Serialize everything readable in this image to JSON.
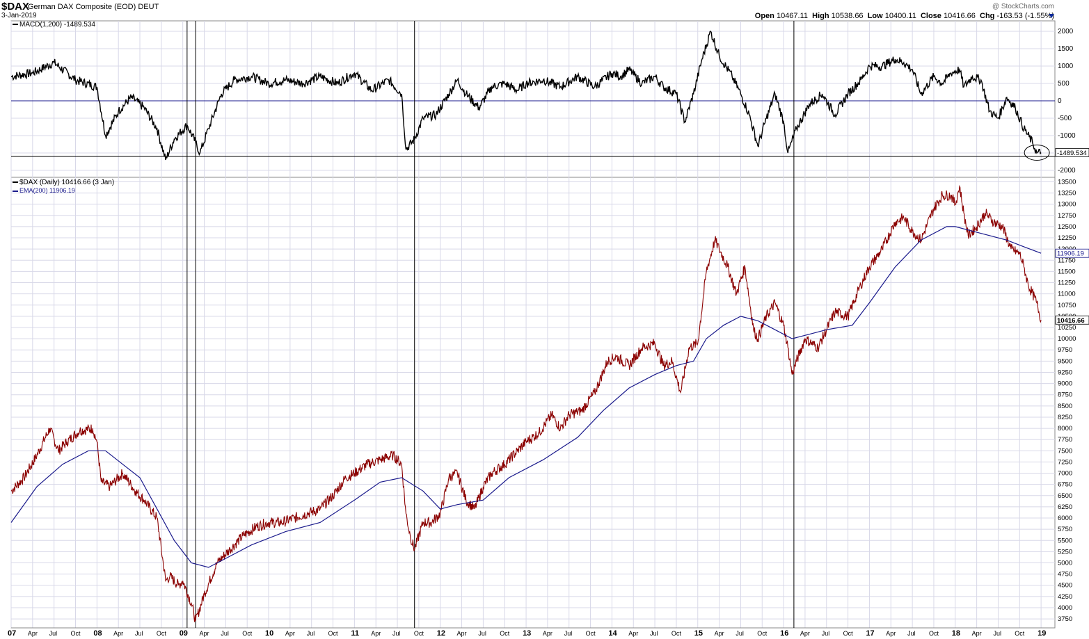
{
  "header": {
    "symbol": "$DAX",
    "name": "German DAX Composite (EOD)",
    "exchange": "DEUT",
    "date": "3-Jan-2019",
    "brand": "@ StockCharts.com",
    "open_label": "Open",
    "open": "10467.11",
    "high_label": "High",
    "high": "10538.66",
    "low_label": "Low",
    "low": "10400.11",
    "close_label": "Close",
    "close": "10416.66",
    "chg_label": "Chg",
    "chg": "-163.53 (-1.55%)"
  },
  "legend": {
    "macd": "MACD(1,200) -1489.534",
    "price": "$DAX (Daily) 10416.66 (3 Jan)",
    "ema": "EMA(200) 11906.19"
  },
  "colors": {
    "price": "#8b0000",
    "ema": "#1a1a8c",
    "macd": "#000000",
    "grid": "#d8d8e8"
  },
  "chart_data": [
    {
      "type": "line",
      "title": "MACD(1,200) -1489.534",
      "ylim": [
        -2200,
        2300
      ],
      "yticks": [
        2000,
        1500,
        1000,
        500,
        0,
        -500,
        -1000,
        -1500,
        -2000
      ],
      "yticklabels": [
        "2000",
        "1500",
        "1000",
        "500",
        "0",
        "-500",
        "-1000",
        "-1500",
        "-2000"
      ],
      "reference_lines": [
        0,
        -1600
      ],
      "last_value_label": "-1489.534",
      "series": [
        {
          "name": "MACD(1,200)",
          "x": [
            2007.0,
            2007.25,
            2007.5,
            2007.75,
            2008.0,
            2008.1,
            2008.25,
            2008.4,
            2008.55,
            2008.7,
            2008.8,
            2008.9,
            2009.05,
            2009.15,
            2009.2,
            2009.3,
            2009.45,
            2009.6,
            2009.8,
            2010.0,
            2010.2,
            2010.4,
            2010.6,
            2010.8,
            2011.0,
            2011.2,
            2011.4,
            2011.55,
            2011.6,
            2011.7,
            2011.8,
            2011.95,
            2012.1,
            2012.2,
            2012.3,
            2012.45,
            2012.6,
            2012.75,
            2012.9,
            2013.0,
            2013.2,
            2013.4,
            2013.6,
            2013.8,
            2014.0,
            2014.1,
            2014.2,
            2014.35,
            2014.5,
            2014.6,
            2014.75,
            2014.85,
            2014.95,
            2015.05,
            2015.15,
            2015.25,
            2015.4,
            2015.5,
            2015.6,
            2015.7,
            2015.8,
            2015.9,
            2016.0,
            2016.05,
            2016.15,
            2016.3,
            2016.45,
            2016.6,
            2016.75,
            2016.9,
            2017.0,
            2017.15,
            2017.3,
            2017.4,
            2017.5,
            2017.6,
            2017.75,
            2017.85,
            2017.95,
            2018.05,
            2018.1,
            2018.2,
            2018.3,
            2018.4,
            2018.5,
            2018.6,
            2018.7,
            2018.8,
            2018.9,
            2018.95,
            2019.0
          ],
          "y": [
            700,
            800,
            1100,
            600,
            400,
            -1000,
            -300,
            100,
            -200,
            -800,
            -1700,
            -1100,
            -700,
            -1200,
            -1500,
            -800,
            200,
            600,
            700,
            500,
            600,
            500,
            700,
            500,
            800,
            300,
            600,
            200,
            -1400,
            -1100,
            -500,
            -400,
            200,
            600,
            200,
            -200,
            400,
            500,
            300,
            500,
            600,
            400,
            700,
            400,
            800,
            700,
            900,
            500,
            700,
            400,
            200,
            -600,
            200,
            1200,
            2000,
            1300,
            700,
            200,
            -400,
            -1300,
            -500,
            200,
            -600,
            -1500,
            -800,
            -100,
            200,
            -400,
            200,
            600,
            1000,
            1000,
            1200,
            1100,
            900,
            200,
            700,
            500,
            800,
            900,
            400,
            700,
            600,
            -300,
            -500,
            100,
            -200,
            -800,
            -1200,
            -1500,
            -1489.534
          ]
        }
      ]
    },
    {
      "type": "line",
      "title": "$DAX (Daily) 10416.66 (3 Jan)",
      "ylim": [
        3550,
        13600
      ],
      "yticks": [
        13500,
        13250,
        13000,
        12750,
        12500,
        12250,
        12000,
        11750,
        11500,
        11250,
        11000,
        10750,
        10500,
        10250,
        10000,
        9750,
        9500,
        9250,
        9000,
        8750,
        8500,
        8250,
        8000,
        7750,
        7500,
        7250,
        7000,
        6750,
        6500,
        6250,
        6000,
        5750,
        5500,
        5250,
        5000,
        4750,
        4500,
        4250,
        4000,
        3750
      ],
      "yticklabels": [
        "13500",
        "13250",
        "13000",
        "12750",
        "12500",
        "12250",
        "12000",
        "11750",
        "11500",
        "11250",
        "11000",
        "10750",
        "10500",
        "10250",
        "10000",
        "9750",
        "9500",
        "9250",
        "9000",
        "8750",
        "8500",
        "8250",
        "8000",
        "7750",
        "7500",
        "7250",
        "7000",
        "6750",
        "6500",
        "6250",
        "6000",
        "5750",
        "5500",
        "5250",
        "5000",
        "4750",
        "4500",
        "4250",
        "4000",
        "3750"
      ],
      "last_value_labels": [
        "11906.19",
        "10416.66"
      ],
      "xticklabels": [
        "07",
        "Apr",
        "Jul",
        "Oct",
        "08",
        "Apr",
        "Jul",
        "Oct",
        "09",
        "Apr",
        "Jul",
        "Oct",
        "10",
        "Apr",
        "Jul",
        "Oct",
        "11",
        "Apr",
        "Jul",
        "Oct",
        "12",
        "Apr",
        "Jul",
        "Oct",
        "13",
        "Apr",
        "Jul",
        "Oct",
        "14",
        "Apr",
        "Jul",
        "Oct",
        "15",
        "Apr",
        "Jul",
        "Oct",
        "16",
        "Apr",
        "Jul",
        "Oct",
        "17",
        "Apr",
        "Jul",
        "Oct",
        "18",
        "Apr",
        "Jul",
        "Oct",
        "19"
      ],
      "series": [
        {
          "name": "$DAX (Daily)",
          "x": [
            2007.0,
            2007.15,
            2007.3,
            2007.45,
            2007.55,
            2007.65,
            2007.8,
            2007.95,
            2008.0,
            2008.05,
            2008.15,
            2008.3,
            2008.45,
            2008.55,
            2008.7,
            2008.8,
            2008.85,
            2008.95,
            2009.0,
            2009.1,
            2009.15,
            2009.25,
            2009.4,
            2009.55,
            2009.7,
            2009.85,
            2010.0,
            2010.15,
            2010.3,
            2010.45,
            2010.6,
            2010.75,
            2010.9,
            2011.0,
            2011.15,
            2011.3,
            2011.45,
            2011.55,
            2011.6,
            2011.65,
            2011.7,
            2011.8,
            2011.9,
            2012.0,
            2012.1,
            2012.2,
            2012.3,
            2012.4,
            2012.5,
            2012.6,
            2012.75,
            2012.9,
            2013.0,
            2013.15,
            2013.3,
            2013.4,
            2013.5,
            2013.65,
            2013.8,
            2013.95,
            2014.05,
            2014.2,
            2014.35,
            2014.5,
            2014.6,
            2014.7,
            2014.8,
            2014.9,
            2015.0,
            2015.1,
            2015.2,
            2015.25,
            2015.35,
            2015.45,
            2015.55,
            2015.65,
            2015.7,
            2015.8,
            2015.9,
            2016.0,
            2016.05,
            2016.1,
            2016.15,
            2016.25,
            2016.4,
            2016.5,
            2016.6,
            2016.75,
            2016.9,
            2017.0,
            2017.15,
            2017.3,
            2017.4,
            2017.5,
            2017.6,
            2017.75,
            2017.85,
            2017.95,
            2018.0,
            2018.05,
            2018.1,
            2018.15,
            2018.25,
            2018.35,
            2018.45,
            2018.55,
            2018.65,
            2018.75,
            2018.8,
            2018.85,
            2018.95,
            2019.0
          ],
          "y": [
            6600,
            6900,
            7400,
            8000,
            7500,
            7700,
            7950,
            8000,
            7700,
            6800,
            6700,
            7000,
            6600,
            6400,
            6000,
            4600,
            4700,
            4500,
            4600,
            4100,
            3700,
            4300,
            5000,
            5300,
            5600,
            5800,
            5900,
            5900,
            6000,
            6100,
            6200,
            6500,
            6900,
            7000,
            7200,
            7300,
            7400,
            7200,
            6100,
            5600,
            5300,
            5900,
            5900,
            6100,
            6900,
            7000,
            6400,
            6200,
            6700,
            7000,
            7200,
            7500,
            7700,
            7900,
            8300,
            8000,
            8300,
            8400,
            8800,
            9500,
            9600,
            9400,
            9800,
            9900,
            9400,
            9500,
            8800,
            9800,
            9900,
            11500,
            12200,
            12000,
            11600,
            11000,
            11600,
            10200,
            10000,
            10500,
            10800,
            10300,
            9800,
            9200,
            9500,
            10000,
            9800,
            10200,
            10600,
            10500,
            11200,
            11600,
            12000,
            12600,
            12700,
            12400,
            12200,
            12900,
            13200,
            13200,
            13000,
            13400,
            12800,
            12300,
            12500,
            12800,
            12600,
            12500,
            12000,
            11900,
            11600,
            11200,
            10800,
            10416.66
          ]
        },
        {
          "name": "EMA(200)",
          "x": [
            2007.0,
            2007.3,
            2007.6,
            2007.9,
            2008.1,
            2008.3,
            2008.5,
            2008.7,
            2008.9,
            2009.1,
            2009.3,
            2009.5,
            2009.8,
            2010.2,
            2010.6,
            2011.0,
            2011.3,
            2011.55,
            2011.8,
            2012.0,
            2012.2,
            2012.5,
            2012.8,
            2013.2,
            2013.6,
            2013.9,
            2014.2,
            2014.5,
            2014.75,
            2014.95,
            2015.1,
            2015.3,
            2015.5,
            2015.7,
            2015.9,
            2016.1,
            2016.3,
            2016.5,
            2016.8,
            2017.0,
            2017.3,
            2017.6,
            2017.9,
            2018.0,
            2018.2,
            2018.4,
            2018.6,
            2018.8,
            2019.0
          ],
          "y": [
            5900,
            6700,
            7200,
            7500,
            7500,
            7200,
            6900,
            6200,
            5500,
            5000,
            4900,
            5100,
            5400,
            5700,
            5900,
            6400,
            6800,
            6900,
            6600,
            6200,
            6300,
            6400,
            6900,
            7300,
            7800,
            8400,
            8900,
            9200,
            9400,
            9500,
            10000,
            10300,
            10500,
            10400,
            10200,
            10000,
            10100,
            10200,
            10300,
            10800,
            11600,
            12200,
            12500,
            12500,
            12400,
            12300,
            12200,
            12050,
            11906.19
          ]
        }
      ]
    }
  ]
}
